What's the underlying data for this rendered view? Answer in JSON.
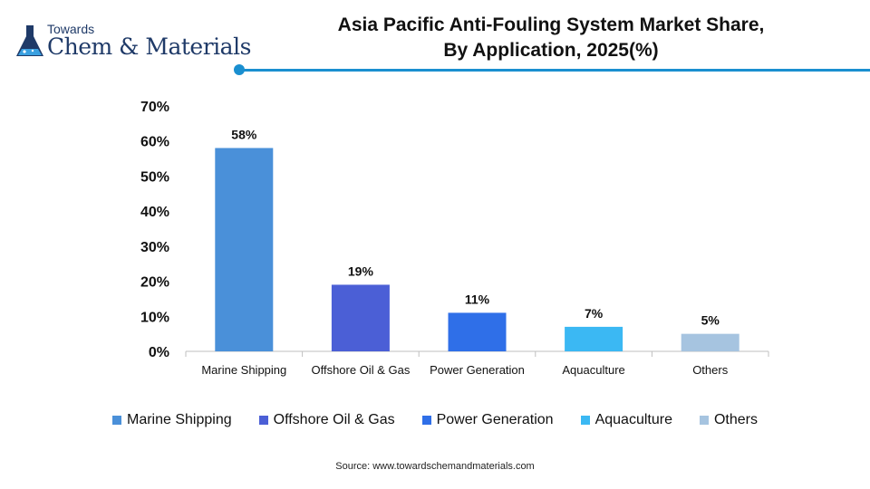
{
  "brand": {
    "top": "Towards",
    "main": "Chem & Materials"
  },
  "title_lines": [
    "Asia Pacific Anti-Fouling System Market Share,",
    "By Application, 2025(%)"
  ],
  "source": "Source: www.towardschemandmaterials.com",
  "colors": {
    "accent": "#1a8fd0"
  },
  "chart_data": {
    "type": "bar",
    "title": "Asia Pacific Anti-Fouling System Market Share, By Application, 2025(%)",
    "categories": [
      "Marine Shipping",
      "Offshore Oil & Gas",
      "Power Generation",
      "Aquaculture",
      "Others"
    ],
    "values": [
      58,
      19,
      11,
      7,
      5
    ],
    "value_labels": [
      "58%",
      "19%",
      "11%",
      "7%",
      "5%"
    ],
    "colors": [
      "#4a90d9",
      "#4b5fd6",
      "#2f6fe8",
      "#3bb8f3",
      "#a6c4e0"
    ],
    "ylim": [
      0,
      70
    ],
    "yticks": [
      0,
      10,
      20,
      30,
      40,
      50,
      60,
      70
    ],
    "ytick_labels": [
      "0%",
      "10%",
      "20%",
      "30%",
      "40%",
      "50%",
      "60%",
      "70%"
    ],
    "xlabel": "",
    "ylabel": "",
    "grid": false,
    "legend_position": "bottom"
  }
}
